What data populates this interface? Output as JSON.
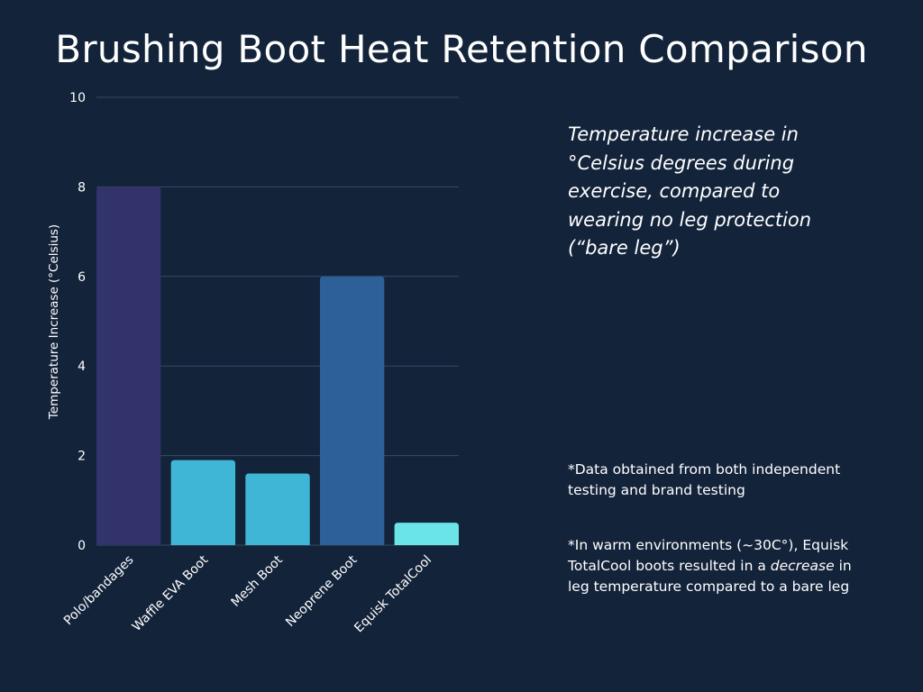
{
  "title": "Brushing Boot Heat Retention Comparison",
  "subtitle": "Temperature increase in °Celsius degrees during exercise, compared to wearing no leg protection (“bare leg”)",
  "notes": {
    "note1": "*Data obtained from both independent testing and brand testing",
    "note2_prefix": "*In warm environments (~30C°), Equisk TotalCool boots resulted in a ",
    "note2_emph": "decrease",
    "note2_suffix": " in leg temperature compared to a bare leg"
  },
  "chart_data": {
    "type": "bar",
    "title": "Brushing Boot Heat Retention Comparison",
    "xlabel": "",
    "ylabel": "Temperature Increase (°Celsius)",
    "ylim": [
      0,
      10
    ],
    "yticks": [
      0,
      2,
      4,
      6,
      8,
      10
    ],
    "grid": true,
    "categories": [
      "Polo/bandages",
      "Waffle EVA Boot",
      "Mesh Boot",
      "Neoprene Boot",
      "Equisk TotalCool"
    ],
    "values": [
      8,
      1.9,
      1.6,
      6,
      0.5
    ],
    "colors": [
      "#31336a",
      "#40b6d6",
      "#40b6d6",
      "#2d5f98",
      "#6ae4e6"
    ]
  },
  "colors": {
    "background": "#13233a",
    "gridline": "#3a4a60",
    "text": "#ffffff"
  }
}
